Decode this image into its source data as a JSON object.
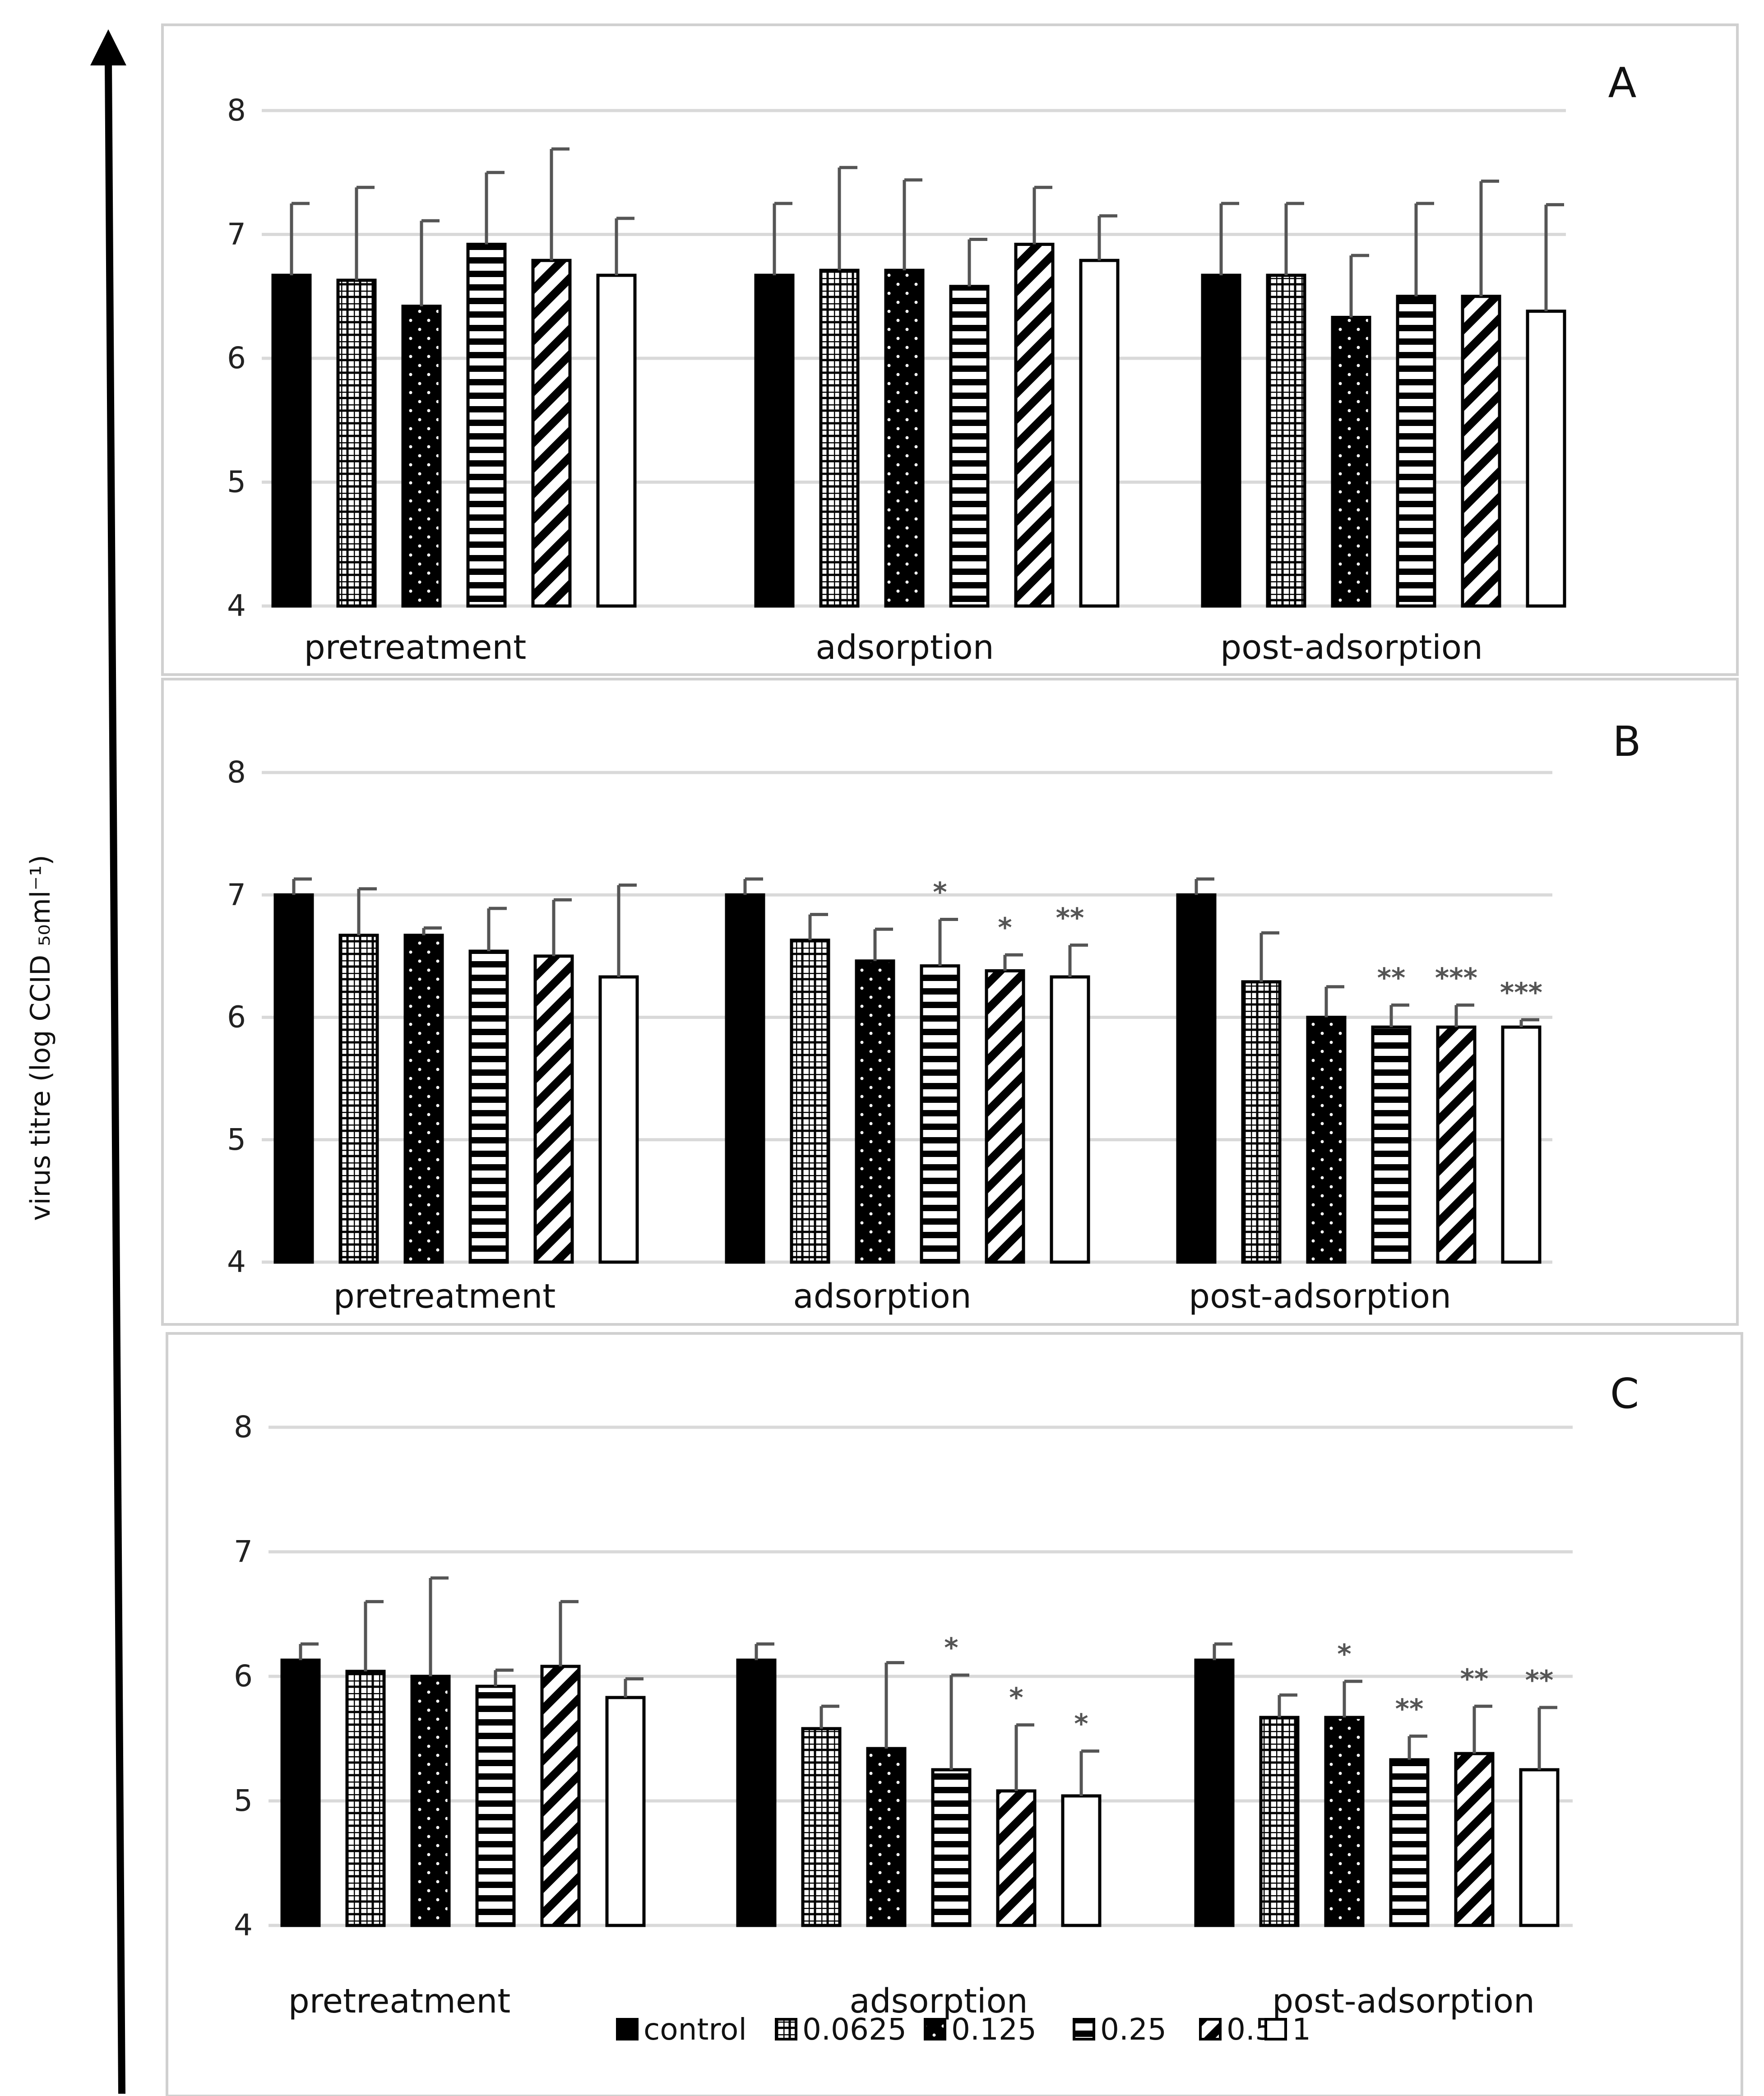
{
  "colors": {
    "control": "#000000",
    "0.0625": "grid-pattern",
    "0.125": "dotted-black-pattern",
    "0.25": "horizontal-line-pattern",
    "0.5": "diagonal-line-pattern",
    "1": "#ffffff"
  },
  "chart_data": {
    "type": "bar",
    "ylabel": "virus titre (log CCID ₅₀ml⁻¹)",
    "ylim": [
      4,
      8
    ],
    "yticks": [
      4,
      5,
      6,
      7,
      8
    ],
    "legend": {
      "placement": "bottom",
      "entries": [
        "control",
        "0.0625",
        "0.125",
        "0.25",
        "0.5",
        "1"
      ]
    },
    "panels": [
      {
        "label": "A",
        "groups": [
          "pretreatment",
          "adsorption",
          "post-adsorption"
        ],
        "series": [
          {
            "name": "control",
            "values": [
              6.67,
              6.67,
              6.67
            ],
            "errors": [
              0.58,
              0.58,
              0.58
            ],
            "sig": [
              "",
              "",
              ""
            ]
          },
          {
            "name": "0.0625",
            "values": [
              6.63,
              6.71,
              6.67
            ],
            "errors": [
              0.75,
              0.83,
              0.58
            ],
            "sig": [
              "",
              "",
              ""
            ]
          },
          {
            "name": "0.125",
            "values": [
              6.42,
              6.71,
              6.33
            ],
            "errors": [
              0.69,
              0.73,
              0.5
            ],
            "sig": [
              "",
              "",
              ""
            ]
          },
          {
            "name": "0.25",
            "values": [
              6.92,
              6.58,
              6.5
            ],
            "errors": [
              0.58,
              0.38,
              0.75
            ],
            "sig": [
              "",
              "",
              ""
            ]
          },
          {
            "name": "0.5",
            "values": [
              6.79,
              6.92,
              6.5
            ],
            "errors": [
              0.9,
              0.46,
              0.93
            ],
            "sig": [
              "",
              "",
              ""
            ]
          },
          {
            "name": "1",
            "values": [
              6.67,
              6.79,
              6.38
            ],
            "errors": [
              0.46,
              0.36,
              0.86
            ],
            "sig": [
              "",
              "",
              ""
            ]
          }
        ]
      },
      {
        "label": "B",
        "groups": [
          "pretreatment",
          "adsorption",
          "post-adsorption"
        ],
        "series": [
          {
            "name": "control",
            "values": [
              7.0,
              7.0,
              7.0
            ],
            "errors": [
              0.13,
              0.13,
              0.13
            ],
            "sig": [
              "",
              "",
              ""
            ]
          },
          {
            "name": "0.0625",
            "values": [
              6.67,
              6.63,
              6.29
            ],
            "errors": [
              0.38,
              0.21,
              0.4
            ],
            "sig": [
              "",
              "",
              ""
            ]
          },
          {
            "name": "0.125",
            "values": [
              6.67,
              6.46,
              6.0
            ],
            "errors": [
              0.06,
              0.26,
              0.25
            ],
            "sig": [
              "",
              "",
              ""
            ]
          },
          {
            "name": "0.25",
            "values": [
              6.54,
              6.42,
              5.92
            ],
            "errors": [
              0.35,
              0.38,
              0.18
            ],
            "sig": [
              "",
              "*",
              "**"
            ]
          },
          {
            "name": "0.5",
            "values": [
              6.5,
              6.38,
              5.92
            ],
            "errors": [
              0.46,
              0.13,
              0.18
            ],
            "sig": [
              "",
              "*",
              "***"
            ]
          },
          {
            "name": "1",
            "values": [
              6.33,
              6.33,
              5.92
            ],
            "errors": [
              0.75,
              0.26,
              0.06
            ],
            "sig": [
              "",
              "**",
              "***"
            ]
          }
        ]
      },
      {
        "label": "C",
        "groups": [
          "pretreatment",
          "adsorption",
          "post-adsorption"
        ],
        "series": [
          {
            "name": "control",
            "values": [
              6.13,
              6.13,
              6.13
            ],
            "errors": [
              0.13,
              0.13,
              0.13
            ],
            "sig": [
              "",
              "",
              ""
            ]
          },
          {
            "name": "0.0625",
            "values": [
              6.04,
              5.58,
              5.67
            ],
            "errors": [
              0.56,
              0.18,
              0.18
            ],
            "sig": [
              "",
              "",
              ""
            ]
          },
          {
            "name": "0.125",
            "values": [
              6.0,
              5.42,
              5.67
            ],
            "errors": [
              0.79,
              0.69,
              0.29
            ],
            "sig": [
              "",
              "",
              "*"
            ]
          },
          {
            "name": "0.25",
            "values": [
              5.92,
              5.25,
              5.33
            ],
            "errors": [
              0.13,
              0.76,
              0.19
            ],
            "sig": [
              "",
              "*",
              "**"
            ]
          },
          {
            "name": "0.5",
            "values": [
              6.08,
              5.08,
              5.38
            ],
            "errors": [
              0.52,
              0.53,
              0.38
            ],
            "sig": [
              "",
              "*",
              "**"
            ]
          },
          {
            "name": "1",
            "values": [
              5.83,
              5.04,
              5.25
            ],
            "errors": [
              0.15,
              0.36,
              0.5
            ],
            "sig": [
              "",
              "*",
              "**"
            ]
          }
        ]
      }
    ]
  }
}
